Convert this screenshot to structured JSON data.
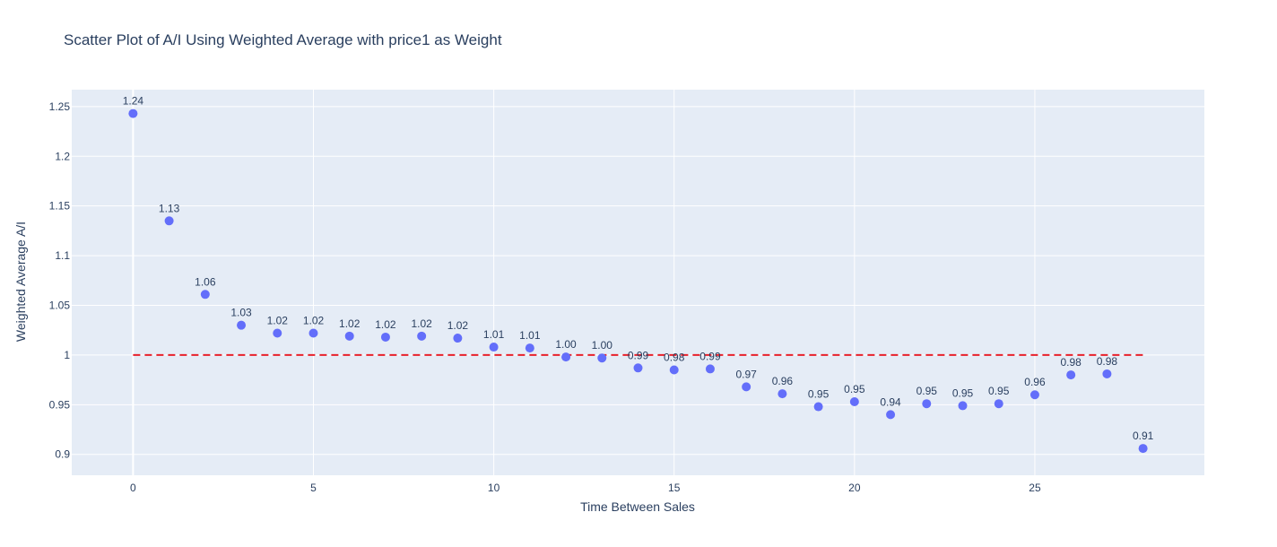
{
  "chart_data": {
    "type": "scatter",
    "title": "Scatter Plot of A/I Using Weighted Average with price1 as Weight",
    "xlabel": "Time Between Sales",
    "ylabel": "Weighted Average A/I",
    "xlim": [
      -1.7,
      29.7
    ],
    "ylim": [
      0.879,
      1.267
    ],
    "xticks": [
      0,
      5,
      10,
      15,
      20,
      25
    ],
    "xtick_labels": [
      "0",
      "5",
      "10",
      "15",
      "20",
      "25"
    ],
    "yticks": [
      0.9,
      0.95,
      1.0,
      1.05,
      1.1,
      1.15,
      1.2,
      1.25
    ],
    "ytick_labels": [
      "0.9",
      "0.95",
      "1",
      "1.05",
      "1.1",
      "1.15",
      "1.2",
      "1.25"
    ],
    "grid": true,
    "plot_background": "#e5ecf6",
    "marker_color": "#636efa",
    "series": [
      {
        "x": [
          0,
          1,
          2,
          3,
          4,
          5,
          6,
          7,
          8,
          9,
          10,
          11,
          12,
          13,
          14,
          15,
          16,
          17,
          18,
          19,
          20,
          21,
          22,
          23,
          24,
          25,
          26,
          27,
          28
        ],
        "y": [
          1.243,
          1.135,
          1.061,
          1.03,
          1.022,
          1.022,
          1.019,
          1.018,
          1.019,
          1.017,
          1.008,
          1.007,
          0.998,
          0.997,
          0.987,
          0.985,
          0.986,
          0.968,
          0.961,
          0.948,
          0.953,
          0.94,
          0.951,
          0.949,
          0.951,
          0.96,
          0.98,
          0.981,
          0.906
        ],
        "labels": [
          "1.24",
          "1.13",
          "1.06",
          "1.03",
          "1.02",
          "1.02",
          "1.02",
          "1.02",
          "1.02",
          "1.02",
          "1.01",
          "1.01",
          "1.00",
          "1.00",
          "0.99",
          "0.98",
          "0.99",
          "0.97",
          "0.96",
          "0.95",
          "0.95",
          "0.94",
          "0.95",
          "0.95",
          "0.95",
          "0.96",
          "0.98",
          "0.98",
          "0.91"
        ]
      }
    ],
    "reference_line": {
      "y": 1.0,
      "x_range": [
        0,
        28
      ],
      "color": "#e8212b",
      "style": "dashed"
    }
  }
}
